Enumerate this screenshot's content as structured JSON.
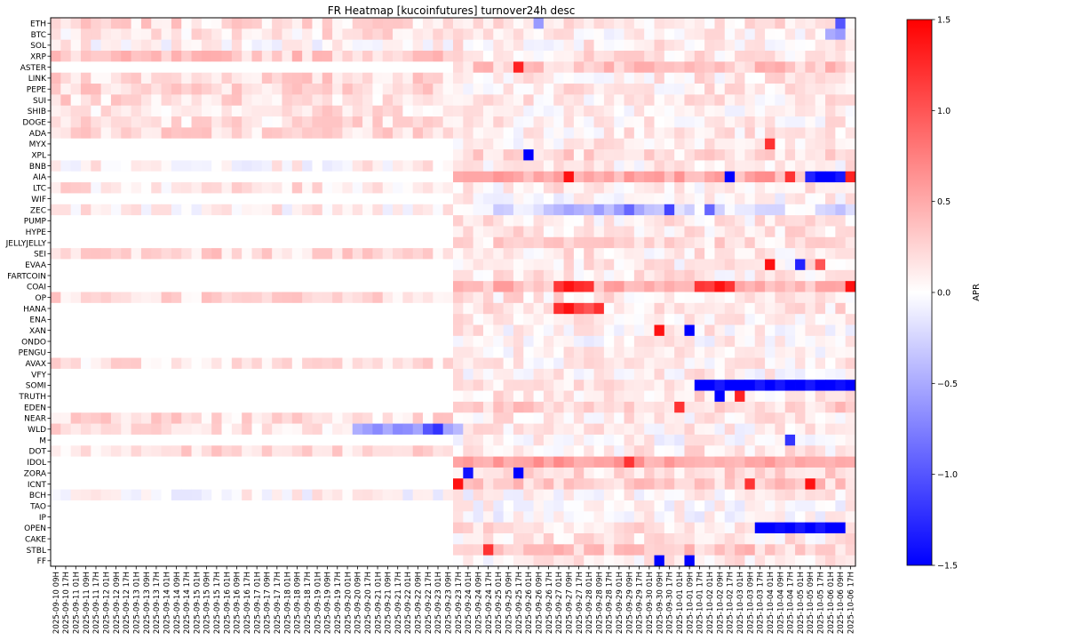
{
  "chart_data": {
    "type": "heatmap",
    "title": "FR Heatmap [kucoinfutures] turnover24h desc",
    "xlabel": "",
    "ylabel": "",
    "colorbar": {
      "label": "APR",
      "range": [
        -1.5,
        1.5
      ],
      "ticks": [
        1.5,
        1.0,
        0.5,
        0.0,
        -0.5,
        -1.0,
        -1.5
      ],
      "tick_labels": [
        "1.5",
        "1.0",
        "0.5",
        "0.0",
        "−0.5",
        "−1.0",
        "−1.5"
      ],
      "colormap": "bwr",
      "low_color": "#0000ff",
      "mid_color": "#ffffff",
      "high_color": "#ff0000"
    },
    "rows": [
      "ETH",
      "BTC",
      "SOL",
      "XRP",
      "ASTER",
      "LINK",
      "PEPE",
      "SUI",
      "SHIB",
      "DOGE",
      "ADA",
      "MYX",
      "XPL",
      "BNB",
      "AIA",
      "LTC",
      "WIF",
      "ZEC",
      "PUMP",
      "HYPE",
      "JELLYJELLY",
      "SEI",
      "EVAA",
      "FARTCOIN",
      "COAI",
      "OP",
      "HANA",
      "ENA",
      "XAN",
      "ONDO",
      "PENGU",
      "AVAX",
      "VFY",
      "SOMI",
      "TRUTH",
      "EDEN",
      "NEAR",
      "WLD",
      "M",
      "DOT",
      "IDOL",
      "ZORA",
      "ICNT",
      "BCH",
      "TAO",
      "IP",
      "OPEN",
      "CAKE",
      "STBL",
      "FF"
    ],
    "columns": [
      "2025-09-10 09H",
      "2025-09-10 17H",
      "2025-09-11 01H",
      "2025-09-11 09H",
      "2025-09-11 17H",
      "2025-09-12 01H",
      "2025-09-12 09H",
      "2025-09-12 17H",
      "2025-09-13 01H",
      "2025-09-13 09H",
      "2025-09-13 17H",
      "2025-09-14 01H",
      "2025-09-14 09H",
      "2025-09-14 17H",
      "2025-09-15 01H",
      "2025-09-15 09H",
      "2025-09-15 17H",
      "2025-09-16 01H",
      "2025-09-16 09H",
      "2025-09-16 17H",
      "2025-09-17 01H",
      "2025-09-17 09H",
      "2025-09-17 17H",
      "2025-09-18 01H",
      "2025-09-18 09H",
      "2025-09-18 17H",
      "2025-09-19 01H",
      "2025-09-19 09H",
      "2025-09-19 17H",
      "2025-09-20 01H",
      "2025-09-20 09H",
      "2025-09-20 17H",
      "2025-09-21 01H",
      "2025-09-21 09H",
      "2025-09-21 17H",
      "2025-09-22 01H",
      "2025-09-22 09H",
      "2025-09-22 17H",
      "2025-09-23 01H",
      "2025-09-23 09H",
      "2025-09-23 17H",
      "2025-09-24 01H",
      "2025-09-24 09H",
      "2025-09-24 17H",
      "2025-09-25 01H",
      "2025-09-25 09H",
      "2025-09-25 17H",
      "2025-09-26 01H",
      "2025-09-26 09H",
      "2025-09-26 17H",
      "2025-09-27 01H",
      "2025-09-27 09H",
      "2025-09-27 17H",
      "2025-09-28 01H",
      "2025-09-28 09H",
      "2025-09-28 17H",
      "2025-09-29 01H",
      "2025-09-29 09H",
      "2025-09-29 17H",
      "2025-09-30 01H",
      "2025-09-30 09H",
      "2025-09-30 17H",
      "2025-10-01 01H",
      "2025-10-01 09H",
      "2025-10-01 17H",
      "2025-10-02 01H",
      "2025-10-02 09H",
      "2025-10-02 17H",
      "2025-10-03 01H",
      "2025-10-03 09H",
      "2025-10-03 17H",
      "2025-10-04 01H",
      "2025-10-04 09H",
      "2025-10-04 17H",
      "2025-10-05 01H",
      "2025-10-05 09H",
      "2025-10-05 17H",
      "2025-10-06 01H",
      "2025-10-06 09H",
      "2025-10-06 17H"
    ],
    "row_profiles": [
      {
        "base": 0.18,
        "early": 0.2,
        "late": 0.15,
        "listed_from": 0
      },
      {
        "base": 0.12,
        "early": 0.15,
        "late": 0.08,
        "listed_from": 0
      },
      {
        "base": 0.1,
        "early": 0.06,
        "late": 0.1,
        "listed_from": 0
      },
      {
        "base": 0.25,
        "early": 0.3,
        "late": 0.15,
        "listed_from": 0
      },
      {
        "base": 0.3,
        "early": 0.0,
        "late": 0.3,
        "listed_from": 40
      },
      {
        "base": 0.2,
        "early": 0.22,
        "late": 0.12,
        "listed_from": 0
      },
      {
        "base": 0.2,
        "early": 0.22,
        "late": 0.12,
        "listed_from": 0
      },
      {
        "base": 0.18,
        "early": 0.2,
        "late": 0.12,
        "listed_from": 0
      },
      {
        "base": 0.15,
        "early": 0.18,
        "late": 0.1,
        "listed_from": 0
      },
      {
        "base": 0.15,
        "early": 0.18,
        "late": 0.1,
        "listed_from": 0
      },
      {
        "base": 0.18,
        "early": 0.22,
        "late": 0.12,
        "listed_from": 0
      },
      {
        "base": 0.05,
        "early": 0.0,
        "late": 0.08,
        "listed_from": 40
      },
      {
        "base": 0.2,
        "early": 0.0,
        "late": 0.2,
        "listed_from": 40
      },
      {
        "base": 0.06,
        "early": 0.06,
        "late": 0.08,
        "listed_from": 0
      },
      {
        "base": 0.45,
        "early": 0.0,
        "late": 0.5,
        "listed_from": 40
      },
      {
        "base": 0.12,
        "early": 0.14,
        "late": 0.1,
        "listed_from": 0
      },
      {
        "base": 0.05,
        "early": 0.0,
        "late": 0.06,
        "listed_from": 40
      },
      {
        "base": -0.1,
        "early": 0.08,
        "late": -0.18,
        "listed_from": 0
      },
      {
        "base": 0.08,
        "early": 0.0,
        "late": 0.12,
        "listed_from": 40
      },
      {
        "base": 0.1,
        "early": 0.0,
        "late": 0.15,
        "listed_from": 40
      },
      {
        "base": 0.1,
        "early": 0.0,
        "late": 0.2,
        "listed_from": 40
      },
      {
        "base": 0.2,
        "early": 0.22,
        "late": 0.12,
        "listed_from": 0
      },
      {
        "base": 0.05,
        "early": 0.0,
        "late": 0.1,
        "listed_from": 40
      },
      {
        "base": 0.1,
        "early": 0.0,
        "late": 0.12,
        "listed_from": 40
      },
      {
        "base": 0.3,
        "early": 0.0,
        "late": 0.4,
        "listed_from": 40
      },
      {
        "base": 0.18,
        "early": 0.22,
        "late": 0.15,
        "listed_from": 0
      },
      {
        "base": 0.1,
        "early": 0.0,
        "late": 0.15,
        "listed_from": 40
      },
      {
        "base": 0.05,
        "early": 0.0,
        "late": 0.08,
        "listed_from": 40
      },
      {
        "base": 0.05,
        "early": 0.0,
        "late": 0.08,
        "listed_from": 40
      },
      {
        "base": 0.06,
        "early": 0.0,
        "late": 0.06,
        "listed_from": 40
      },
      {
        "base": 0.05,
        "early": 0.0,
        "late": 0.06,
        "listed_from": 40
      },
      {
        "base": 0.15,
        "early": 0.18,
        "late": 0.1,
        "listed_from": 0
      },
      {
        "base": 0.05,
        "early": 0.0,
        "late": 0.08,
        "listed_from": 40
      },
      {
        "base": 0.12,
        "early": 0.0,
        "late": 0.15,
        "listed_from": 40
      },
      {
        "base": 0.08,
        "early": 0.0,
        "late": 0.15,
        "listed_from": 40
      },
      {
        "base": 0.1,
        "early": 0.0,
        "late": 0.25,
        "listed_from": 40
      },
      {
        "base": 0.15,
        "early": 0.2,
        "late": 0.1,
        "listed_from": 0
      },
      {
        "base": 0.0,
        "early": 0.15,
        "late": 0.08,
        "listed_from": 0
      },
      {
        "base": 0.05,
        "early": 0.0,
        "late": 0.05,
        "listed_from": 40
      },
      {
        "base": 0.18,
        "early": 0.2,
        "late": 0.12,
        "listed_from": 0
      },
      {
        "base": 0.45,
        "early": 0.0,
        "late": 0.45,
        "listed_from": 40
      },
      {
        "base": 0.2,
        "early": 0.0,
        "late": 0.2,
        "listed_from": 40
      },
      {
        "base": 0.3,
        "early": 0.0,
        "late": 0.3,
        "listed_from": 40
      },
      {
        "base": 0.05,
        "early": 0.03,
        "late": 0.05,
        "listed_from": 0
      },
      {
        "base": 0.05,
        "early": 0.0,
        "late": 0.05,
        "listed_from": 40
      },
      {
        "base": 0.02,
        "early": 0.0,
        "late": 0.03,
        "listed_from": 40
      },
      {
        "base": 0.1,
        "early": 0.0,
        "late": 0.15,
        "listed_from": 40
      },
      {
        "base": 0.1,
        "early": 0.0,
        "late": 0.12,
        "listed_from": 40
      },
      {
        "base": 0.25,
        "early": 0.0,
        "late": 0.3,
        "listed_from": 40
      },
      {
        "base": 0.08,
        "early": 0.0,
        "late": 0.1,
        "listed_from": 40
      }
    ],
    "highlights": [
      {
        "row": "ETH",
        "col": "2025-09-26 09H",
        "value": -0.6
      },
      {
        "row": "ETH",
        "col": "2025-10-06 09H",
        "value": -1.0
      },
      {
        "row": "BTC",
        "col": "2025-10-06 01H",
        "value": -0.5
      },
      {
        "row": "BTC",
        "col": "2025-10-06 09H",
        "value": -0.6
      },
      {
        "row": "ASTER",
        "col": "2025-09-25 17H",
        "value": 1.3
      },
      {
        "row": "MYX",
        "col": "2025-10-04 01H",
        "value": 1.2
      },
      {
        "row": "XPL",
        "col": "2025-09-26 01H",
        "value": -1.5
      },
      {
        "row": "AIA",
        "col": "2025-09-27 09H",
        "value": 1.4
      },
      {
        "row": "AIA",
        "col": "2025-10-02 17H",
        "value": -1.5
      },
      {
        "row": "AIA",
        "col": "2025-10-04 17H",
        "value": 1.2
      },
      {
        "row": "AIA",
        "col": "2025-10-05 09H",
        "value": -1.3
      },
      {
        "row": "AIA",
        "col": "2025-10-05 17H",
        "value": -1.5
      },
      {
        "row": "AIA",
        "col": "2025-10-06 01H",
        "value": -1.5
      },
      {
        "row": "AIA",
        "col": "2025-10-06 17H",
        "value": 1.3
      },
      {
        "row": "ZEC",
        "col": "2025-09-29 09H",
        "value": -0.9
      },
      {
        "row": "ZEC",
        "col": "2025-09-30 17H",
        "value": -1.1
      },
      {
        "row": "ZEC",
        "col": "2025-10-02 01H",
        "value": -0.9
      },
      {
        "row": "EVAA",
        "col": "2025-10-04 01H",
        "value": 1.4
      },
      {
        "row": "EVAA",
        "col": "2025-10-05 01H",
        "value": -1.3
      },
      {
        "row": "EVAA",
        "col": "2025-10-05 17H",
        "value": 1.0
      },
      {
        "row": "COAI",
        "col": "2025-09-27 09H",
        "value": 1.4
      },
      {
        "row": "COAI",
        "col": "2025-10-02 09H",
        "value": 1.4
      },
      {
        "row": "COAI",
        "col": "2025-10-06 17H",
        "value": 1.4
      },
      {
        "row": "HANA",
        "col": "2025-09-27 09H",
        "value": 1.4
      },
      {
        "row": "HANA",
        "col": "2025-09-28 01H",
        "value": 1.0
      },
      {
        "row": "XAN",
        "col": "2025-09-30 09H",
        "value": 1.4
      },
      {
        "row": "XAN",
        "col": "2025-10-01 09H",
        "value": -1.5
      },
      {
        "row": "SOMI",
        "col": "2025-10-01 17H",
        "value": -1.5
      },
      {
        "row": "SOMI",
        "col": "2025-10-03 09H",
        "value": -1.5
      },
      {
        "row": "SOMI",
        "col": "2025-10-06 17H",
        "value": -1.5
      },
      {
        "row": "TRUTH",
        "col": "2025-10-02 09H",
        "value": -1.5
      },
      {
        "row": "TRUTH",
        "col": "2025-10-03 01H",
        "value": 1.3
      },
      {
        "row": "EDEN",
        "col": "2025-10-01 01H",
        "value": 1.2
      },
      {
        "row": "WLD",
        "col": "2025-09-22 17H",
        "value": -1.0
      },
      {
        "row": "WLD",
        "col": "2025-09-23 01H",
        "value": -1.2
      },
      {
        "row": "M",
        "col": "2025-10-04 17H",
        "value": -1.2
      },
      {
        "row": "IDOL",
        "col": "2025-09-29 09H",
        "value": 1.2
      },
      {
        "row": "ZORA",
        "col": "2025-09-24 01H",
        "value": -1.4
      },
      {
        "row": "ZORA",
        "col": "2025-09-25 17H",
        "value": -1.5
      },
      {
        "row": "ICNT",
        "col": "2025-09-23 17H",
        "value": 1.4
      },
      {
        "row": "ICNT",
        "col": "2025-10-03 09H",
        "value": 1.2
      },
      {
        "row": "ICNT",
        "col": "2025-10-05 09H",
        "value": 1.4
      },
      {
        "row": "OPEN",
        "col": "2025-10-03 17H",
        "value": -1.5
      },
      {
        "row": "OPEN",
        "col": "2025-10-06 01H",
        "value": -1.5
      },
      {
        "row": "STBL",
        "col": "2025-09-24 17H",
        "value": 1.2
      },
      {
        "row": "FF",
        "col": "2025-09-30 09H",
        "value": -1.5
      },
      {
        "row": "FF",
        "col": "2025-10-01 09H",
        "value": -1.5
      }
    ],
    "ranges": [
      {
        "row": "AIA",
        "cols": [
          "2025-10-05 17H",
          "2025-10-06 09H"
        ],
        "value": -1.5
      },
      {
        "row": "COAI",
        "cols": [
          "2025-09-27 01H",
          "2025-09-28 01H"
        ],
        "value": 1.3
      },
      {
        "row": "COAI",
        "cols": [
          "2025-10-01 17H",
          "2025-10-02 17H"
        ],
        "value": 1.2
      },
      {
        "row": "HANA",
        "cols": [
          "2025-09-27 01H",
          "2025-09-28 09H"
        ],
        "value": 1.2
      },
      {
        "row": "SOMI",
        "cols": [
          "2025-10-01 17H",
          "2025-10-06 17H"
        ],
        "value": -1.45
      },
      {
        "row": "OPEN",
        "cols": [
          "2025-10-03 17H",
          "2025-10-06 09H"
        ],
        "value": -1.5
      },
      {
        "row": "WLD",
        "cols": [
          "2025-09-20 09H",
          "2025-09-23 17H"
        ],
        "value": -0.55
      },
      {
        "row": "IDOL",
        "cols": [
          "2025-09-23 17H",
          "2025-10-06 17H"
        ],
        "value": 0.55
      },
      {
        "row": "ZEC",
        "cols": [
          "2025-09-26 17H",
          "2025-09-30 17H"
        ],
        "value": -0.45
      },
      {
        "row": "AIA",
        "cols": [
          "2025-09-23 17H",
          "2025-10-02 09H"
        ],
        "value": 0.5
      }
    ]
  }
}
